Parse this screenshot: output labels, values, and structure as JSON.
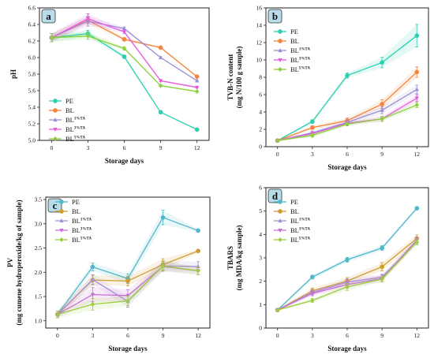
{
  "chart_data": [
    {
      "panel_label": "a",
      "type": "line",
      "xlabel": "Storage days",
      "ylabel": [
        "pH"
      ],
      "x": [
        0,
        3,
        6,
        9,
        12
      ],
      "xticks": [
        "0",
        "3",
        "6",
        "9",
        "12"
      ],
      "xlim": [
        -1,
        13
      ],
      "ylim": [
        5.0,
        6.6
      ],
      "yticks": [
        "5.0",
        "5.2",
        "5.4",
        "5.6",
        "5.8",
        "6.0",
        "6.2",
        "6.4",
        "6.6"
      ],
      "yticks_values": [
        5.0,
        5.2,
        5.4,
        5.6,
        5.8,
        6.0,
        6.2,
        6.4,
        6.6
      ],
      "legend_position": "bottom-left",
      "series": [
        {
          "name": "PE",
          "values": [
            6.24,
            6.29,
            6.01,
            5.34,
            5.13
          ],
          "err": [
            0.05,
            0.04,
            0.02,
            0.01,
            0.01
          ]
        },
        {
          "name": "BL",
          "values": [
            6.24,
            6.45,
            6.22,
            6.12,
            5.77
          ],
          "err": [
            0.05,
            0.04,
            0.02,
            0.01,
            0.01
          ]
        },
        {
          "name": "BL",
          "sup": "1%TA",
          "values": [
            6.24,
            6.44,
            6.35,
            6.0,
            5.72
          ],
          "err": [
            0.05,
            0.06,
            0.02,
            0.01,
            0.01
          ]
        },
        {
          "name": "BL",
          "sup": "3%TA",
          "values": [
            6.24,
            6.47,
            6.31,
            5.72,
            5.64
          ],
          "err": [
            0.05,
            0.06,
            0.02,
            0.01,
            0.01
          ]
        },
        {
          "name": "BL",
          "sup": "5%TA",
          "values": [
            6.24,
            6.26,
            6.11,
            5.66,
            5.59
          ],
          "err": [
            0.05,
            0.04,
            0.02,
            0.01,
            0.01
          ]
        }
      ]
    },
    {
      "panel_label": "b",
      "type": "line",
      "xlabel": "Storage days",
      "ylabel": [
        "TVB-N content",
        "(mg N/100 g sample)"
      ],
      "x": [
        0,
        3,
        6,
        9,
        12
      ],
      "xticks": [
        "0",
        "3",
        "6",
        "9",
        "12"
      ],
      "xlim": [
        -1,
        13
      ],
      "ylim": [
        0,
        16
      ],
      "yticks": [
        "0",
        "2",
        "4",
        "6",
        "8",
        "10",
        "12",
        "14",
        "16"
      ],
      "yticks_values": [
        0,
        2,
        4,
        6,
        8,
        10,
        12,
        14,
        16
      ],
      "legend_position": "top-left",
      "series": [
        {
          "name": "PE",
          "values": [
            0.7,
            2.9,
            8.2,
            9.7,
            12.8
          ],
          "err": [
            0.1,
            0.2,
            0.3,
            0.6,
            1.3
          ]
        },
        {
          "name": "BL",
          "values": [
            0.7,
            2.2,
            3.0,
            4.9,
            8.6
          ],
          "err": [
            0.1,
            0.2,
            0.3,
            0.5,
            0.6
          ]
        },
        {
          "name": "BL",
          "sup": "1%TA",
          "values": [
            0.7,
            1.6,
            2.8,
            4.2,
            6.6
          ],
          "err": [
            0.1,
            0.2,
            0.3,
            0.4,
            0.5
          ]
        },
        {
          "name": "BL",
          "sup": "3%TA",
          "values": [
            0.7,
            1.5,
            2.7,
            3.2,
            5.6
          ],
          "err": [
            0.1,
            0.2,
            0.2,
            0.3,
            0.4
          ]
        },
        {
          "name": "BL",
          "sup": "5%TA",
          "values": [
            0.7,
            1.3,
            2.6,
            3.2,
            4.8
          ],
          "err": [
            0.1,
            0.2,
            0.2,
            0.3,
            0.3
          ]
        }
      ]
    },
    {
      "panel_label": "c",
      "type": "line",
      "xlabel": "Storage days",
      "ylabel": [
        "PV",
        "(mg cumene hydroperoxide/kg of sample)"
      ],
      "x": [
        0,
        3,
        6,
        9,
        12
      ],
      "xticks": [
        "0",
        "3",
        "6",
        "9",
        "12"
      ],
      "xlim": [
        -1,
        13
      ],
      "ylim": [
        0.85,
        3.55
      ],
      "yticks": [
        "1.0",
        "1.5",
        "2.0",
        "2.5",
        "3.0",
        "3.5"
      ],
      "yticks_values": [
        1.0,
        1.5,
        2.0,
        2.5,
        3.0,
        3.5
      ],
      "legend_position": "top-left",
      "series": [
        {
          "name": "PE",
          "values": [
            1.13,
            2.11,
            1.87,
            3.13,
            2.86
          ],
          "err": [
            0.07,
            0.08,
            0.1,
            0.15,
            0.03
          ]
        },
        {
          "name": "BL",
          "values": [
            1.13,
            1.84,
            1.82,
            2.16,
            2.44
          ],
          "err": [
            0.07,
            0.1,
            0.1,
            0.12,
            0.03
          ]
        },
        {
          "name": "BL",
          "sup": "1%TA",
          "values": [
            1.13,
            1.85,
            1.4,
            2.13,
            2.12
          ],
          "err": [
            0.07,
            0.1,
            0.12,
            0.1,
            0.1
          ]
        },
        {
          "name": "BL",
          "sup": "3%TA",
          "values": [
            1.13,
            1.54,
            1.52,
            2.12,
            2.03
          ],
          "err": [
            0.07,
            0.15,
            0.12,
            0.1,
            0.08
          ]
        },
        {
          "name": "BL",
          "sup": "5%TA",
          "values": [
            1.13,
            1.34,
            1.41,
            2.13,
            2.03
          ],
          "err": [
            0.07,
            0.12,
            0.1,
            0.1,
            0.08
          ]
        }
      ]
    },
    {
      "panel_label": "d",
      "type": "line",
      "xlabel": "Storage days",
      "ylabel": [
        "TBARS",
        "(mg MDA/kg sample)"
      ],
      "x": [
        0,
        3,
        6,
        9,
        12
      ],
      "xticks": [
        "0",
        "3",
        "6",
        "9",
        "12"
      ],
      "xlim": [
        -1,
        13
      ],
      "ylim": [
        0,
        6
      ],
      "yticks": [
        "0",
        "1",
        "2",
        "3",
        "4",
        "5",
        "6"
      ],
      "yticks_values": [
        0,
        1,
        2,
        3,
        4,
        5,
        6
      ],
      "legend_position": "top-left",
      "series": [
        {
          "name": "PE",
          "values": [
            0.77,
            2.18,
            2.92,
            3.42,
            5.12
          ],
          "err": [
            0.04,
            0.08,
            0.1,
            0.1,
            0.06
          ]
        },
        {
          "name": "BL",
          "values": [
            0.77,
            1.59,
            2.01,
            2.62,
            3.83
          ],
          "err": [
            0.04,
            0.12,
            0.15,
            0.18,
            0.15
          ]
        },
        {
          "name": "BL",
          "sup": "1%TA",
          "values": [
            0.77,
            1.52,
            1.96,
            2.18,
            3.68
          ],
          "err": [
            0.04,
            0.1,
            0.15,
            0.12,
            0.12
          ]
        },
        {
          "name": "BL",
          "sup": "3%TA",
          "values": [
            0.77,
            1.48,
            1.86,
            2.12,
            3.76
          ],
          "err": [
            0.04,
            0.1,
            0.15,
            0.15,
            0.12
          ]
        },
        {
          "name": "BL",
          "sup": "5%TA",
          "values": [
            0.77,
            1.18,
            1.76,
            2.09,
            3.68
          ],
          "err": [
            0.04,
            0.08,
            0.15,
            0.12,
            0.12
          ]
        }
      ]
    }
  ],
  "colors": {
    "panel_a_b": [
      "#2ccfb0",
      "#f5843a",
      "#9b8fd8",
      "#e55ce0",
      "#8ad13c"
    ],
    "panel_c_d": [
      "#4fb8c9",
      "#cf9e2f",
      "#a88fd6",
      "#c86fd8",
      "#9ccd3f"
    ],
    "badge_fill": "#b8dcea"
  },
  "markers": [
    "circle",
    "circle",
    "triangle-up",
    "triangle-down",
    "diamond"
  ]
}
